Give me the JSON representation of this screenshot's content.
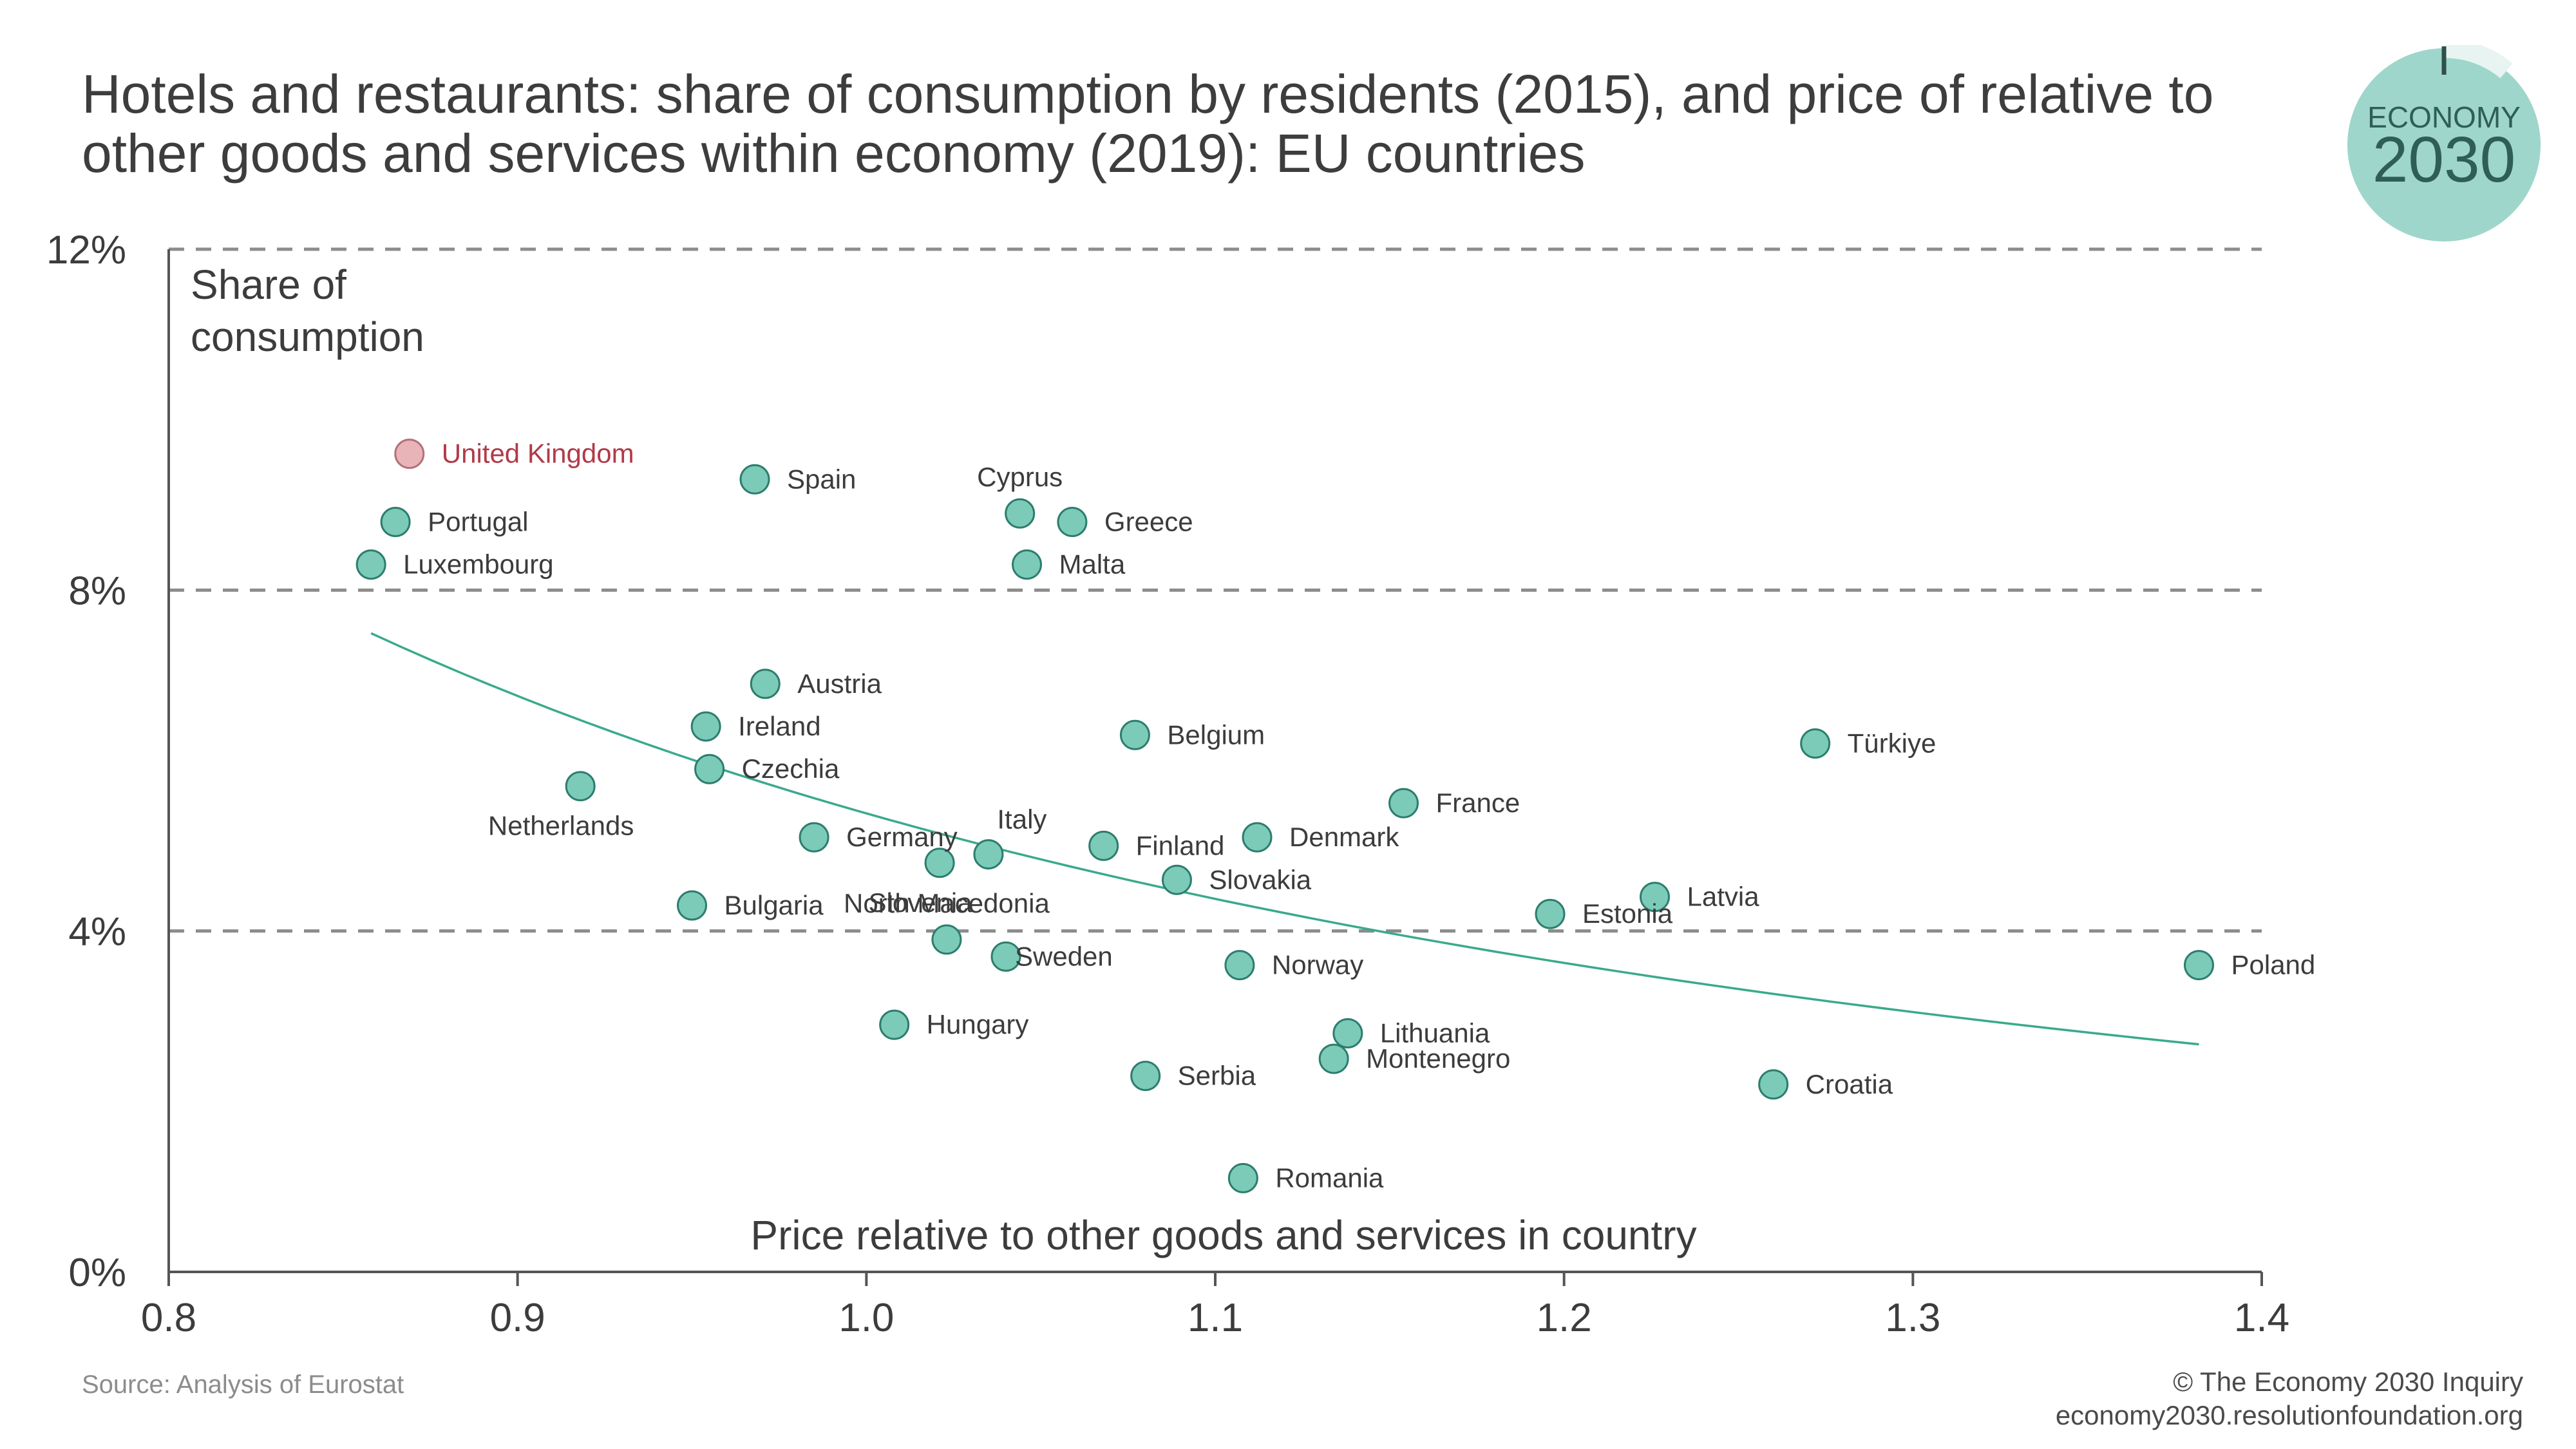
{
  "title_lines": [
    "Hotels and restaurants: share of consumption by residents (2015), and price of relative to",
    "other goods and services within economy (2019): EU countries"
  ],
  "logo": {
    "word": "ECONOMY",
    "year": "2030",
    "color": "#9ed6cb"
  },
  "source": "Source: Analysis of Eurostat",
  "credit": [
    "© The Economy 2030 Inquiry",
    "economy2030.resolutionfoundation.org"
  ],
  "colors": {
    "point": "#7ccbb9",
    "point_stroke": "#2d7d6e",
    "highlight": "#e8b4b8",
    "highlight_stroke": "#b5707a",
    "highlight_label": "#b23a48",
    "trend": "#3aaa8c",
    "grid": "#8c8c8c",
    "axis": "#555555"
  },
  "chart_data": {
    "type": "scatter",
    "ylabel_lines": [
      "Share of",
      "consumption"
    ],
    "xlabel": "Price relative to other goods and services in country",
    "xlim": [
      0.8,
      1.4
    ],
    "ylim": [
      0,
      12
    ],
    "x_ticks": [
      "0.8",
      "0.9",
      "1.0",
      "1.1",
      "1.2",
      "1.3",
      "1.4"
    ],
    "y_ticks": [
      {
        "value": 0,
        "label": "0%"
      },
      {
        "value": 4,
        "label": "4%"
      },
      {
        "value": 8,
        "label": "8%"
      },
      {
        "value": 12,
        "label": "12%"
      }
    ],
    "grid": "horizontal dashed",
    "trendline": {
      "x": [
        0.858,
        1.382
      ]
    },
    "points": [
      {
        "name": "United Kingdom",
        "x": 0.869,
        "y": 9.6,
        "highlight": true,
        "label_pos": "right"
      },
      {
        "name": "Spain",
        "x": 0.968,
        "y": 9.3,
        "label_pos": "right"
      },
      {
        "name": "Cyprus",
        "x": 1.044,
        "y": 8.9,
        "label_pos": "above"
      },
      {
        "name": "Greece",
        "x": 1.059,
        "y": 8.8,
        "label_pos": "right"
      },
      {
        "name": "Portugal",
        "x": 0.865,
        "y": 8.8,
        "label_pos": "right"
      },
      {
        "name": "Luxembourg",
        "x": 0.858,
        "y": 8.3,
        "label_pos": "right"
      },
      {
        "name": "Malta",
        "x": 1.046,
        "y": 8.3,
        "label_pos": "right"
      },
      {
        "name": "Austria",
        "x": 0.971,
        "y": 6.9,
        "label_pos": "right"
      },
      {
        "name": "Ireland",
        "x": 0.954,
        "y": 6.4,
        "label_pos": "right"
      },
      {
        "name": "Belgium",
        "x": 1.077,
        "y": 6.3,
        "label_pos": "right"
      },
      {
        "name": "Türkiye",
        "x": 1.272,
        "y": 6.2,
        "label_pos": "right"
      },
      {
        "name": "Czechia",
        "x": 0.955,
        "y": 5.9,
        "label_pos": "right"
      },
      {
        "name": "Netherlands",
        "x": 0.918,
        "y": 5.7,
        "label_pos": "below"
      },
      {
        "name": "France",
        "x": 1.154,
        "y": 5.5,
        "label_pos": "right"
      },
      {
        "name": "Germany",
        "x": 0.985,
        "y": 5.1,
        "label_pos": "right"
      },
      {
        "name": "Denmark",
        "x": 1.112,
        "y": 5.1,
        "label_pos": "right"
      },
      {
        "name": "Finland",
        "x": 1.068,
        "y": 5.0,
        "label_pos": "right"
      },
      {
        "name": "Italy",
        "x": 1.035,
        "y": 4.9,
        "label_pos": "above-right"
      },
      {
        "name": "Slovenia",
        "x": 1.021,
        "y": 4.8,
        "label_pos": "below"
      },
      {
        "name": "Slovakia",
        "x": 1.089,
        "y": 4.6,
        "label_pos": "right"
      },
      {
        "name": "Latvia",
        "x": 1.226,
        "y": 4.4,
        "label_pos": "right"
      },
      {
        "name": "Bulgaria",
        "x": 0.95,
        "y": 4.3,
        "label_pos": "right"
      },
      {
        "name": "Estonia",
        "x": 1.196,
        "y": 4.2,
        "label_pos": "right"
      },
      {
        "name": "North Macedonia",
        "x": 1.023,
        "y": 3.9,
        "label_pos": "above"
      },
      {
        "name": "Sweden",
        "x": 1.04,
        "y": 3.7,
        "label_pos": "right-close"
      },
      {
        "name": "Norway",
        "x": 1.107,
        "y": 3.6,
        "label_pos": "right"
      },
      {
        "name": "Poland",
        "x": 1.382,
        "y": 3.6,
        "label_pos": "right"
      },
      {
        "name": "Hungary",
        "x": 1.008,
        "y": 2.9,
        "label_pos": "right"
      },
      {
        "name": "Lithuania",
        "x": 1.138,
        "y": 2.8,
        "label_pos": "right"
      },
      {
        "name": "Montenegro",
        "x": 1.134,
        "y": 2.5,
        "label_pos": "right"
      },
      {
        "name": "Serbia",
        "x": 1.08,
        "y": 2.3,
        "label_pos": "right"
      },
      {
        "name": "Croatia",
        "x": 1.26,
        "y": 2.2,
        "label_pos": "right"
      },
      {
        "name": "Romania",
        "x": 1.108,
        "y": 1.1,
        "label_pos": "right"
      }
    ]
  }
}
